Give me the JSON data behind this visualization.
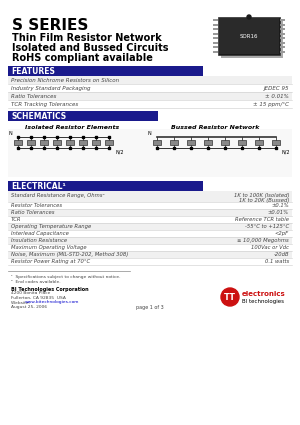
{
  "title": "S SERIES",
  "subtitle_lines": [
    "Thin Film Resistor Network",
    "Isolated and Bussed Circuits",
    "RoHS compliant available"
  ],
  "bg_color": "#ffffff",
  "header_bg": "#1a1a8c",
  "header_text_color": "#ffffff",
  "section_features": "FEATURES",
  "features_rows": [
    [
      "Precision Nichrome Resistors on Silicon",
      ""
    ],
    [
      "Industry Standard Packaging",
      "JEDEC 95"
    ],
    [
      "Ratio Tolerances",
      "± 0.01%"
    ],
    [
      "TCR Tracking Tolerances",
      "± 15 ppm/°C"
    ]
  ],
  "section_schematics": "SCHEMATICS",
  "schematic_left_title": "Isolated Resistor Elements",
  "schematic_right_title": "Bussed Resistor Network",
  "section_electrical": "ELECTRICAL¹",
  "electrical_rows": [
    [
      "Standard Resistance Range, Ohms²",
      "1K to 100K (Isolated)\n1K to 20K (Bussed)"
    ],
    [
      "Resistor Tolerances",
      "±0.1%"
    ],
    [
      "Ratio Tolerances",
      "±0.01%"
    ],
    [
      "TCR",
      "Reference TCR table"
    ],
    [
      "Operating Temperature Range",
      "-55°C to +125°C"
    ],
    [
      "Interlead Capacitance",
      "<2pF"
    ],
    [
      "Insulation Resistance",
      "≥ 10,000 Megohms"
    ],
    [
      "Maximum Operating Voltage",
      "100Vac or Vdc"
    ],
    [
      "Noise, Maximum (MIL-STD-202, Method 308)",
      "-20dB"
    ],
    [
      "Resistor Power Rating at 70°C",
      "0.1 watts"
    ]
  ],
  "footer_note1": "¹  Specifications subject to change without notice.",
  "footer_note2": "²  End codes available.",
  "footer_company_name": "BI Technologies Corporation",
  "footer_address1": "4200 Bonita Place",
  "footer_address2": "Fullerton, CA 92835  USA",
  "footer_website_label": "Website:  ",
  "footer_website": "www.bitechnologies.com",
  "footer_date": "August 25, 2006",
  "footer_page": "page 1 of 3",
  "line_color": "#cccccc",
  "text_color": "#000000",
  "gray_text": "#444444",
  "dark_text": "#222222"
}
